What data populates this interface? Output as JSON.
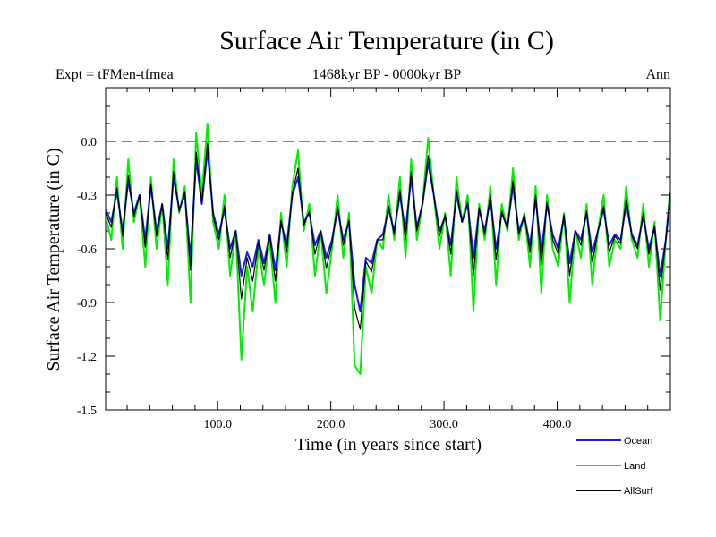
{
  "chart_data": {
    "type": "line",
    "title": "Surface Air Temperature (in C)",
    "subtitle_left": "Expt = tFMen-tfmea",
    "subtitle_center": "1468kyr BP - 0000kyr BP",
    "subtitle_right": "Ann",
    "xlabel": "Time (in years since start)",
    "ylabel": "Surface Air Temperature (in C)",
    "xlim": [
      1,
      500
    ],
    "ylim": [
      -1.5,
      0.3
    ],
    "xticks": [
      100,
      200,
      300,
      400
    ],
    "xtick_labels": [
      "100.0",
      "200.0",
      "300.0",
      "400.0"
    ],
    "yticks": [
      0.0,
      -0.3,
      -0.6,
      -0.9,
      -1.2,
      -1.5
    ],
    "ytick_labels": [
      "0.0",
      "-0.3",
      "-0.6",
      "-0.9",
      "-1.2",
      "-1.5"
    ],
    "reference_line": 0.0,
    "series": [
      {
        "name": "Land",
        "color": "#00ee00",
        "x": [
          1,
          6,
          11,
          16,
          21,
          26,
          31,
          36,
          41,
          46,
          51,
          56,
          61,
          66,
          71,
          76,
          81,
          86,
          91,
          96,
          101,
          106,
          111,
          116,
          121,
          126,
          131,
          136,
          141,
          146,
          151,
          156,
          161,
          166,
          171,
          176,
          181,
          186,
          191,
          196,
          201,
          206,
          211,
          216,
          221,
          226,
          231,
          236,
          241,
          246,
          251,
          256,
          261,
          266,
          271,
          276,
          281,
          286,
          291,
          296,
          301,
          306,
          311,
          316,
          321,
          326,
          331,
          336,
          341,
          346,
          351,
          356,
          361,
          366,
          371,
          376,
          381,
          386,
          391,
          396,
          401,
          406,
          411,
          416,
          421,
          426,
          431,
          436,
          441,
          446,
          451,
          456,
          461,
          466,
          471,
          476,
          481,
          486,
          491,
          496,
          500
        ],
        "values": [
          -0.42,
          -0.55,
          -0.2,
          -0.6,
          -0.1,
          -0.45,
          -0.3,
          -0.7,
          -0.2,
          -0.6,
          -0.35,
          -0.8,
          -0.1,
          -0.4,
          -0.25,
          -0.9,
          0.05,
          -0.3,
          0.1,
          -0.45,
          -0.6,
          -0.3,
          -0.75,
          -0.5,
          -1.22,
          -0.7,
          -0.95,
          -0.6,
          -0.8,
          -0.55,
          -0.9,
          -0.4,
          -0.7,
          -0.25,
          -0.05,
          -0.5,
          -0.35,
          -0.75,
          -0.5,
          -0.85,
          -0.6,
          -0.3,
          -0.65,
          -0.4,
          -1.25,
          -1.3,
          -0.7,
          -0.85,
          -0.55,
          -0.6,
          -0.3,
          -0.55,
          -0.2,
          -0.65,
          -0.1,
          -0.55,
          -0.35,
          0.02,
          -0.3,
          -0.6,
          -0.4,
          -0.75,
          -0.2,
          -0.45,
          -0.3,
          -0.95,
          -0.35,
          -0.55,
          -0.25,
          -0.8,
          -0.35,
          -0.5,
          -0.15,
          -0.55,
          -0.4,
          -0.7,
          -0.25,
          -0.85,
          -0.3,
          -0.6,
          -0.7,
          -0.4,
          -0.9,
          -0.5,
          -0.65,
          -0.35,
          -0.8,
          -0.5,
          -0.3,
          -0.7,
          -0.55,
          -0.6,
          -0.25,
          -0.55,
          -0.65,
          -0.35,
          -0.7,
          -0.45,
          -1.0,
          -0.55,
          -0.25
        ]
      },
      {
        "name": "Ocean",
        "color": "#1a1aee",
        "x": [
          1,
          6,
          11,
          16,
          21,
          26,
          31,
          36,
          41,
          46,
          51,
          56,
          61,
          66,
          71,
          76,
          81,
          86,
          91,
          96,
          101,
          106,
          111,
          116,
          121,
          126,
          131,
          136,
          141,
          146,
          151,
          156,
          161,
          166,
          171,
          176,
          181,
          186,
          191,
          196,
          201,
          206,
          211,
          216,
          221,
          226,
          231,
          236,
          241,
          246,
          251,
          256,
          261,
          266,
          271,
          276,
          281,
          286,
          291,
          296,
          301,
          306,
          311,
          316,
          321,
          326,
          331,
          336,
          341,
          346,
          351,
          356,
          361,
          366,
          371,
          376,
          381,
          386,
          391,
          396,
          401,
          406,
          411,
          416,
          421,
          426,
          431,
          436,
          441,
          446,
          451,
          456,
          461,
          466,
          471,
          476,
          481,
          486,
          491,
          496,
          500
        ],
        "values": [
          -0.38,
          -0.45,
          -0.28,
          -0.5,
          -0.22,
          -0.4,
          -0.3,
          -0.55,
          -0.25,
          -0.5,
          -0.35,
          -0.6,
          -0.2,
          -0.38,
          -0.3,
          -0.65,
          -0.1,
          -0.35,
          -0.05,
          -0.4,
          -0.52,
          -0.38,
          -0.6,
          -0.5,
          -0.75,
          -0.62,
          -0.7,
          -0.55,
          -0.68,
          -0.52,
          -0.72,
          -0.45,
          -0.58,
          -0.3,
          -0.2,
          -0.45,
          -0.4,
          -0.58,
          -0.5,
          -0.65,
          -0.55,
          -0.38,
          -0.55,
          -0.45,
          -0.8,
          -0.95,
          -0.65,
          -0.68,
          -0.55,
          -0.52,
          -0.38,
          -0.5,
          -0.3,
          -0.5,
          -0.2,
          -0.48,
          -0.35,
          -0.12,
          -0.3,
          -0.5,
          -0.42,
          -0.58,
          -0.3,
          -0.45,
          -0.35,
          -0.65,
          -0.38,
          -0.5,
          -0.32,
          -0.6,
          -0.4,
          -0.48,
          -0.25,
          -0.5,
          -0.42,
          -0.58,
          -0.32,
          -0.62,
          -0.35,
          -0.52,
          -0.6,
          -0.42,
          -0.68,
          -0.5,
          -0.55,
          -0.4,
          -0.62,
          -0.5,
          -0.38,
          -0.58,
          -0.52,
          -0.55,
          -0.35,
          -0.52,
          -0.58,
          -0.42,
          -0.6,
          -0.48,
          -0.75,
          -0.55,
          -0.3
        ]
      },
      {
        "name": "AllSurf",
        "color": "#000000",
        "x": [
          1,
          6,
          11,
          16,
          21,
          26,
          31,
          36,
          41,
          46,
          51,
          56,
          61,
          66,
          71,
          76,
          81,
          86,
          91,
          96,
          101,
          106,
          111,
          116,
          121,
          126,
          131,
          136,
          141,
          146,
          151,
          156,
          161,
          166,
          171,
          176,
          181,
          186,
          191,
          196,
          201,
          206,
          211,
          216,
          221,
          226,
          231,
          236,
          241,
          246,
          251,
          256,
          261,
          266,
          271,
          276,
          281,
          286,
          291,
          296,
          301,
          306,
          311,
          316,
          321,
          326,
          331,
          336,
          341,
          346,
          351,
          356,
          361,
          366,
          371,
          376,
          381,
          386,
          391,
          396,
          401,
          406,
          411,
          416,
          421,
          426,
          431,
          436,
          441,
          446,
          451,
          456,
          461,
          466,
          471,
          476,
          481,
          486,
          491,
          496,
          500
        ],
        "values": [
          -0.4,
          -0.48,
          -0.26,
          -0.53,
          -0.19,
          -0.42,
          -0.3,
          -0.59,
          -0.24,
          -0.53,
          -0.35,
          -0.66,
          -0.17,
          -0.39,
          -0.28,
          -0.72,
          -0.06,
          -0.34,
          -0.01,
          -0.42,
          -0.55,
          -0.36,
          -0.65,
          -0.5,
          -0.88,
          -0.65,
          -0.78,
          -0.57,
          -0.72,
          -0.53,
          -0.78,
          -0.44,
          -0.62,
          -0.29,
          -0.15,
          -0.47,
          -0.39,
          -0.63,
          -0.5,
          -0.71,
          -0.57,
          -0.36,
          -0.58,
          -0.44,
          -0.93,
          -1.05,
          -0.67,
          -0.73,
          -0.55,
          -0.55,
          -0.36,
          -0.52,
          -0.27,
          -0.55,
          -0.17,
          -0.5,
          -0.35,
          -0.08,
          -0.3,
          -0.53,
          -0.41,
          -0.63,
          -0.27,
          -0.45,
          -0.34,
          -0.75,
          -0.37,
          -0.52,
          -0.3,
          -0.66,
          -0.39,
          -0.49,
          -0.22,
          -0.52,
          -0.41,
          -0.62,
          -0.3,
          -0.69,
          -0.34,
          -0.55,
          -0.63,
          -0.41,
          -0.75,
          -0.5,
          -0.58,
          -0.39,
          -0.68,
          -0.5,
          -0.36,
          -0.62,
          -0.53,
          -0.57,
          -0.32,
          -0.53,
          -0.6,
          -0.4,
          -0.63,
          -0.47,
          -0.83,
          -0.55,
          -0.28
        ]
      }
    ],
    "legend": [
      {
        "name": "Ocean",
        "color": "#1a1aee"
      },
      {
        "name": "Land",
        "color": "#00ee00"
      },
      {
        "name": "AllSurf",
        "color": "#000000"
      }
    ]
  }
}
